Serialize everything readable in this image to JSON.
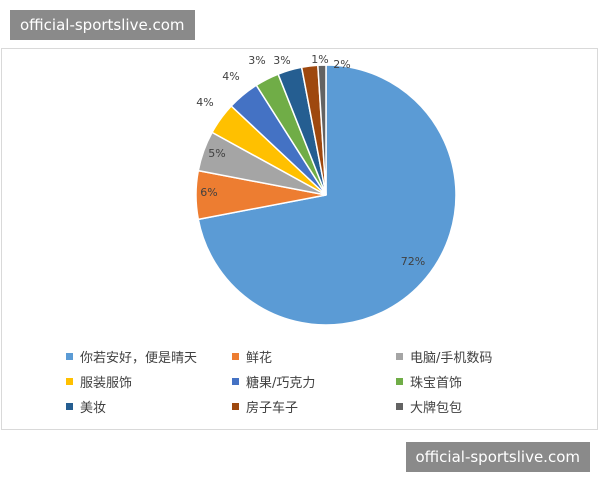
{
  "watermark_top": "official-sportslive.com",
  "watermark_bottom": "official-sportslive.com",
  "chart_data": {
    "type": "pie",
    "start_angle_deg": 0,
    "direction": "clockwise",
    "legend_position": "bottom",
    "slices": [
      {
        "label": "你若安好，便是晴天",
        "value": 72,
        "value_label": "72%",
        "color": "#5b9bd5"
      },
      {
        "label": "鲜花",
        "value": 6,
        "value_label": "6%",
        "color": "#ed7d31"
      },
      {
        "label": "电脑/手机数码",
        "value": 5,
        "value_label": "5%",
        "color": "#a5a5a5"
      },
      {
        "label": "服装服饰",
        "value": 4,
        "value_label": "4%",
        "color": "#ffc000"
      },
      {
        "label": "糖果/巧克力",
        "value": 4,
        "value_label": "4%",
        "color": "#4472c4"
      },
      {
        "label": "珠宝首饰",
        "value": 3,
        "value_label": "3%",
        "color": "#70ad47"
      },
      {
        "label": "美妆",
        "value": 3,
        "value_label": "3%",
        "color": "#255e91"
      },
      {
        "label": "房子车子",
        "value": 2,
        "value_label": "2%",
        "color": "#9e480e"
      },
      {
        "label": "大牌包包",
        "value": 1,
        "value_label": "1%",
        "color": "#636363"
      }
    ]
  }
}
